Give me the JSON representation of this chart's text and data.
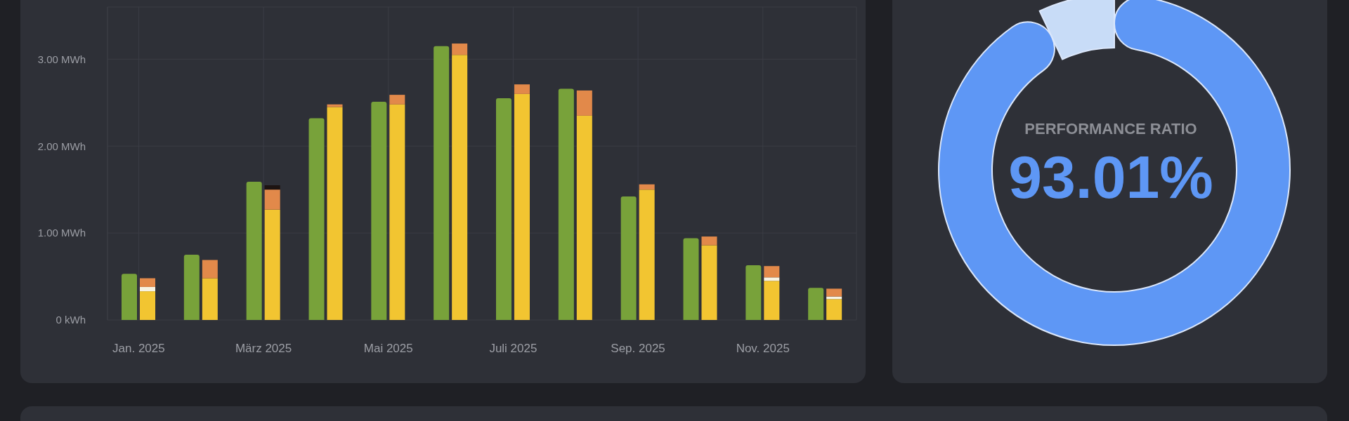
{
  "chart_data": [
    {
      "type": "bar",
      "categories": [
        "Jan. 2025",
        null,
        "März 2025",
        null,
        "Mai 2025",
        null,
        "Juli 2025",
        null,
        "Sep. 2025",
        null,
        "Nov. 2025",
        null
      ],
      "series": [
        {
          "color": "#78a23a",
          "values": [
            0.53,
            0.75,
            1.59,
            2.32,
            2.51,
            3.15,
            2.55,
            2.66,
            1.42,
            0.94,
            0.63,
            0.37
          ]
        },
        {
          "color": "#f2c531",
          "values": [
            0.33,
            0.48,
            1.27,
            2.45,
            2.48,
            3.05,
            2.6,
            2.35,
            1.5,
            0.86,
            0.45,
            0.24
          ],
          "base": [
            0,
            0,
            0,
            0,
            0,
            0,
            0,
            0,
            0,
            0,
            0,
            0
          ]
        },
        {
          "color": "#f7f3e3",
          "values": [
            0.05,
            null,
            null,
            null,
            null,
            null,
            null,
            null,
            null,
            null,
            0.04,
            0.03
          ],
          "base": [
            0.33,
            null,
            null,
            null,
            null,
            null,
            null,
            null,
            null,
            null,
            0.45,
            0.24
          ]
        },
        {
          "color": "#e2894a",
          "values": [
            0.1,
            0.21,
            0.23,
            0.03,
            0.11,
            0.13,
            0.11,
            0.29,
            0.06,
            0.1,
            0.13,
            0.09
          ],
          "base": [
            0.38,
            0.48,
            1.27,
            2.45,
            2.48,
            3.05,
            2.6,
            2.35,
            1.5,
            0.86,
            0.49,
            0.27
          ]
        },
        {
          "color": "#1d1412",
          "values": [
            null,
            null,
            0.05,
            null,
            null,
            null,
            null,
            null,
            null,
            null,
            null,
            null
          ],
          "base": [
            null,
            null,
            1.5,
            null,
            null,
            null,
            null,
            null,
            null,
            null,
            null,
            null
          ]
        }
      ],
      "ylim": [
        0,
        3.6
      ],
      "yticks": [
        {
          "value": 0,
          "label": "0 kWh"
        },
        {
          "value": 1,
          "label": "1.00 MWh"
        },
        {
          "value": 2,
          "label": "2.00 MWh"
        },
        {
          "value": 3,
          "label": "3.00 MWh"
        }
      ],
      "grid": true
    },
    {
      "type": "donut",
      "title": "PERFORMANCE RATIO",
      "categories": [
        null,
        null
      ],
      "values": [
        93.01,
        6.99
      ],
      "colors": [
        "#5e97f5",
        "#c8dcf7"
      ],
      "value_labels": [
        "93.01%",
        null
      ]
    }
  ]
}
